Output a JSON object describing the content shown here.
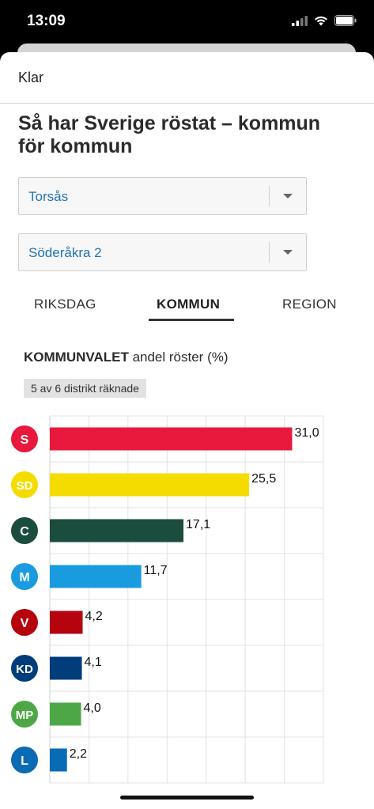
{
  "status_bar": {
    "time": "13:09"
  },
  "header": {
    "done_label": "Klar"
  },
  "page": {
    "title": "Så har Sverige röstat – kommun för kommun"
  },
  "selects": {
    "municipality": {
      "value": "Torsås"
    },
    "district": {
      "value": "Söderåkra 2"
    }
  },
  "tabs": [
    {
      "label": "RIKSDAG",
      "active": false
    },
    {
      "label": "KOMMUN",
      "active": true
    },
    {
      "label": "REGION",
      "active": false
    }
  ],
  "chart_heading": {
    "bold": "KOMMUNVALET",
    "rest": " andel röster (%)"
  },
  "count_badge": "5 av 6 distrikt räknade",
  "chart_data": {
    "type": "bar",
    "orientation": "horizontal",
    "categories": [
      "S",
      "SD",
      "C",
      "M",
      "V",
      "KD",
      "MP",
      "L"
    ],
    "values": [
      31.0,
      25.5,
      17.1,
      11.7,
      4.2,
      4.1,
      4.0,
      2.2
    ],
    "value_labels": [
      "31,0",
      "25,5",
      "17,1",
      "11,7",
      "4,2",
      "4,1",
      "4,0",
      "2,2"
    ],
    "colors": [
      "#e8193c",
      "#f5dc00",
      "#1b4d3e",
      "#1a9be0",
      "#b5040e",
      "#003d7a",
      "#4ea747",
      "#0a6bb5"
    ],
    "label_text_colors": [
      "#ffffff",
      "#ffffff",
      "#ffffff",
      "#ffffff",
      "#ffffff",
      "#ffffff",
      "#ffffff",
      "#ffffff"
    ],
    "xlim": [
      0,
      35
    ],
    "grid": true,
    "title": "",
    "xlabel": "",
    "ylabel": ""
  }
}
